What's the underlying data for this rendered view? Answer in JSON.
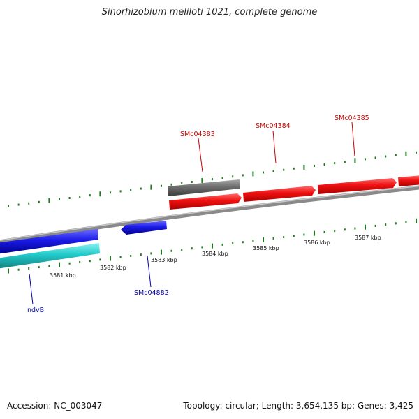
{
  "title": "Sinorhizobium meliloti 1021, complete genome",
  "footer": {
    "accession": "Accession: NC_003047",
    "stats": "Topology: circular; Length: 3,654,135 bp; Genes: 3,425"
  },
  "colors": {
    "backbone": "#8a8a8a",
    "tick": "#1e7a1e",
    "forward_gene": "#e01010",
    "reverse_gene": "#1a1ae0",
    "cyan_gene": "#22c8c8",
    "gray_gene": "#6a6a6a",
    "forward_label": "#cc0000",
    "reverse_label": "#0000aa"
  },
  "scale": {
    "unit": "kbp",
    "labels": [
      "3581 kbp",
      "3582 kbp",
      "3583 kbp",
      "3584 kbp",
      "3585 kbp",
      "3586 kbp",
      "3587 kbp"
    ]
  },
  "gene_labels": {
    "forward": [
      "SMc04383",
      "SMc04384",
      "SMc04385"
    ],
    "reverse": [
      "SMc04882",
      "ndvB"
    ]
  }
}
